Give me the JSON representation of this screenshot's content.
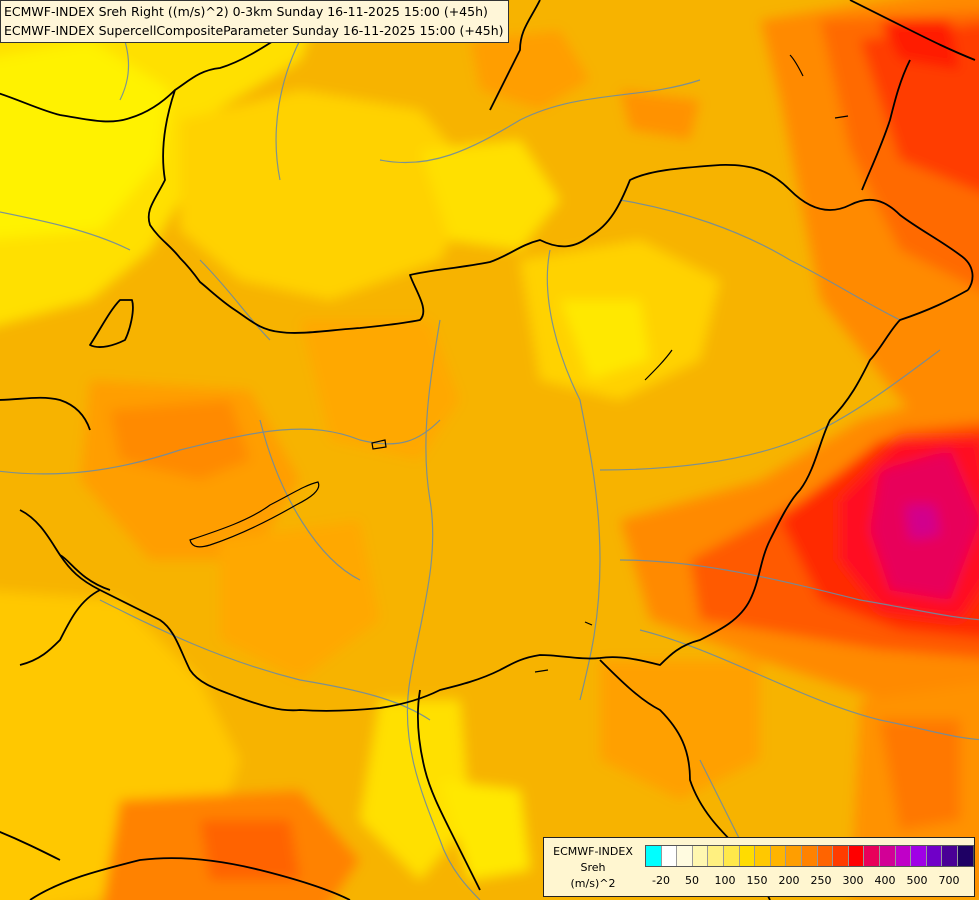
{
  "header": {
    "line1": "ECMWF-INDEX Sreh Right ((m/s)^2) 0-3km Sunday 16-11-2025 15:00 (+45h)",
    "line2": "ECMWF-INDEX SupercellCompositeParameter Sunday 16-11-2025 15:00 (+45h)"
  },
  "legend": {
    "source": "ECMWF-INDEX",
    "variable": "Sreh",
    "unit": "(m/s)^2",
    "colors": [
      "#00ffff",
      "#ffffff",
      "#fffbe0",
      "#fff7b0",
      "#fff080",
      "#ffe84a",
      "#ffdc00",
      "#ffc800",
      "#ffb400",
      "#ff9e00",
      "#ff8200",
      "#ff6400",
      "#ff3c00",
      "#ff0000",
      "#e8005a",
      "#d20096",
      "#c000c8",
      "#a000e6",
      "#7000c8",
      "#4a0096",
      "#1e0064"
    ],
    "labels": [
      "-20",
      "50",
      "100",
      "150",
      "200",
      "250",
      "300",
      "400",
      "500",
      "700"
    ]
  },
  "colors": {
    "background": "#f7b300",
    "border_country": "#000000",
    "river": "#6e8ca0"
  }
}
